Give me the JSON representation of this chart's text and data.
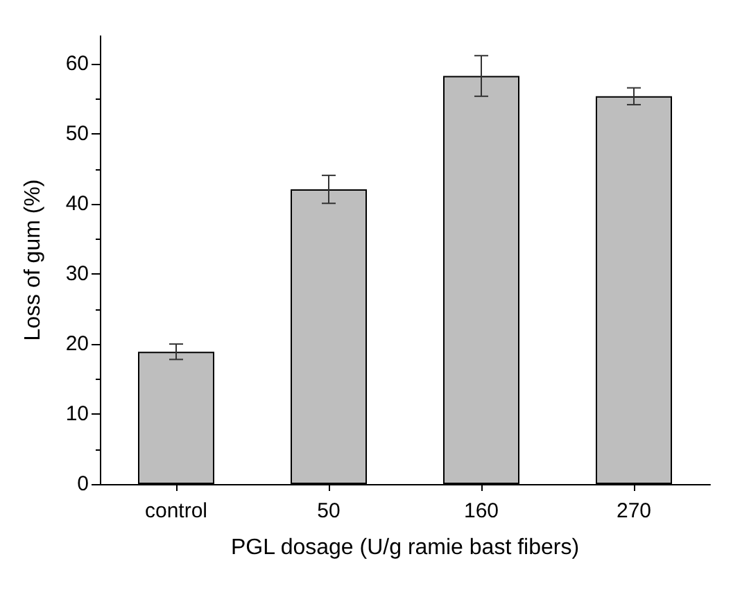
{
  "chart_data": {
    "type": "bar",
    "xlabel": "PGL dosage (U/g ramie bast fibers)",
    "ylabel": "Loss of gum (%)",
    "categories": [
      "control",
      "50",
      "160",
      "270"
    ],
    "values": [
      18.9,
      42.1,
      58.3,
      55.4
    ],
    "errors": [
      1.1,
      2.0,
      2.9,
      1.2
    ],
    "color": "#bebebe",
    "ylim": [
      0,
      64
    ],
    "yticks": [
      0,
      10,
      20,
      30,
      40,
      50,
      60
    ],
    "grid": false
  }
}
